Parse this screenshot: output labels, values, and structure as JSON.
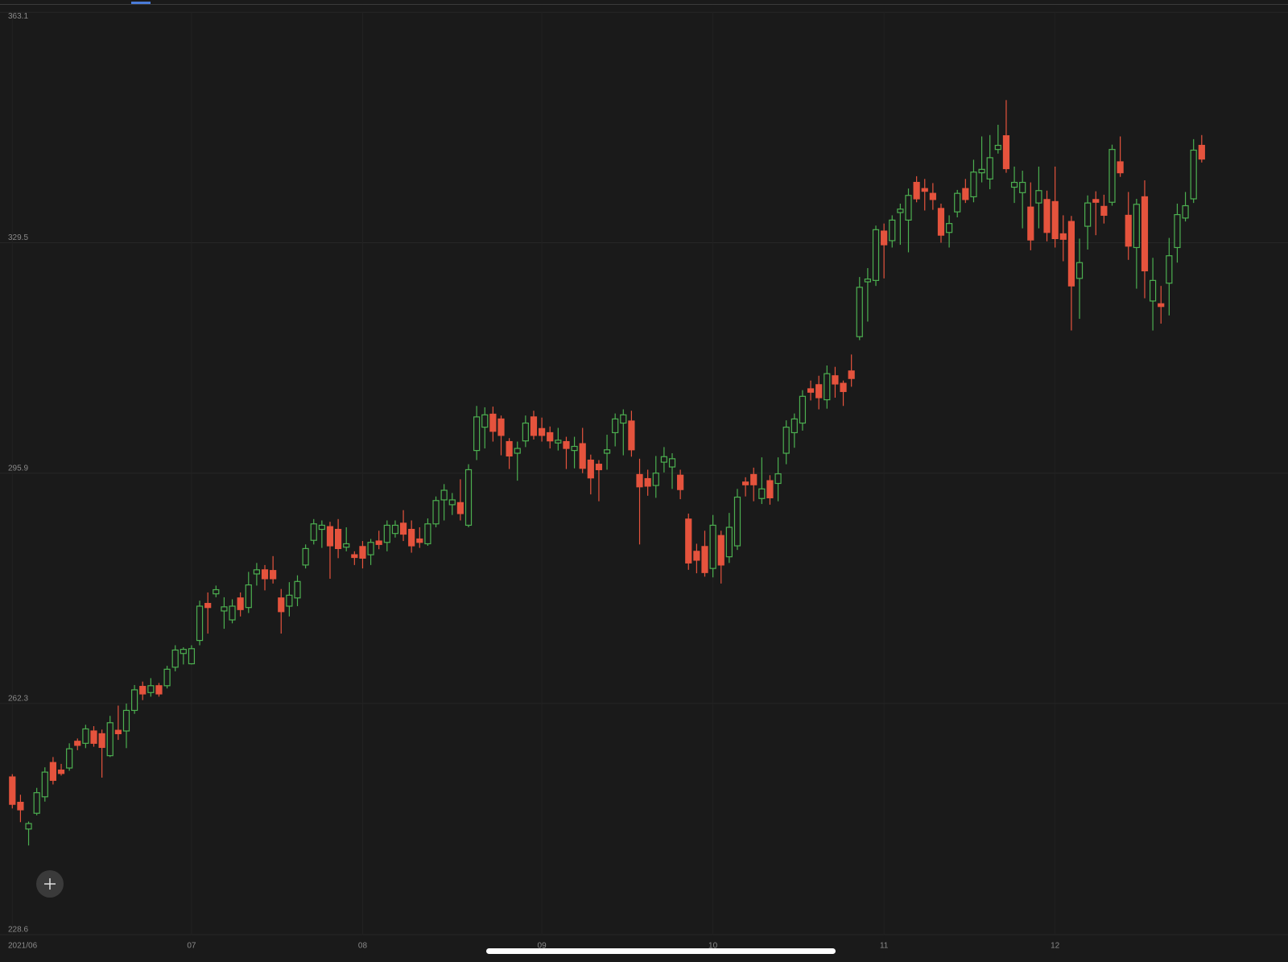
{
  "chart_data": {
    "type": "candlestick",
    "categories": [
      "2021/06",
      null,
      null,
      null,
      null,
      null,
      null,
      null,
      null,
      null,
      null,
      null,
      null,
      null,
      null,
      null,
      null,
      null,
      null,
      null,
      null,
      null,
      "07",
      null,
      null,
      null,
      null,
      null,
      null,
      null,
      null,
      null,
      null,
      null,
      null,
      null,
      null,
      null,
      null,
      null,
      null,
      null,
      null,
      "08",
      null,
      null,
      null,
      null,
      null,
      null,
      null,
      null,
      null,
      null,
      null,
      null,
      null,
      null,
      null,
      null,
      null,
      null,
      null,
      null,
      null,
      "09",
      null,
      null,
      null,
      null,
      null,
      null,
      null,
      null,
      null,
      null,
      null,
      null,
      null,
      null,
      null,
      null,
      null,
      null,
      null,
      null,
      "10",
      null,
      null,
      null,
      null,
      null,
      null,
      null,
      null,
      null,
      null,
      null,
      null,
      null,
      null,
      null,
      null,
      null,
      null,
      null,
      null,
      "11",
      null,
      null,
      null,
      null,
      null,
      null,
      null,
      null,
      null,
      null,
      null,
      null,
      null,
      null,
      null,
      null,
      null,
      null,
      null,
      null,
      "12",
      null,
      null,
      null,
      null,
      null,
      null,
      null,
      null,
      null,
      null,
      null,
      null,
      null,
      null,
      null,
      null,
      null,
      null
    ],
    "open": [
      251.6,
      247.9,
      244,
      246.3,
      248.7,
      253.7,
      252.6,
      252.9,
      256.8,
      256.5,
      258.3,
      257.9,
      254.7,
      258.4,
      258.3,
      261.3,
      264.8,
      263.9,
      264.9,
      264.9,
      267.6,
      269.6,
      268.1,
      271.5,
      276.9,
      278.3,
      275.8,
      274.5,
      277.7,
      276.3,
      281.2,
      281.8,
      281.7,
      277.7,
      276.5,
      277.7,
      282.5,
      286.1,
      287.7,
      288.1,
      287.7,
      285.1,
      284,
      285.2,
      284,
      286,
      285.8,
      287.1,
      288.6,
      287.7,
      286.3,
      285.6,
      288.5,
      292,
      291.3,
      291.6,
      288.3,
      299.2,
      302.6,
      304.5,
      303.8,
      300.5,
      298.8,
      300.6,
      304.1,
      302.4,
      301.8,
      300.3,
      300.5,
      299.2,
      300.2,
      297.8,
      297.2,
      298.8,
      301.8,
      303.2,
      303.5,
      295.7,
      295.1,
      294.1,
      297.5,
      296.8,
      295.6,
      289.2,
      284.5,
      285.2,
      282,
      286.8,
      283.7,
      285.3,
      294.6,
      295.7,
      292.2,
      294.8,
      294.4,
      298.8,
      301.8,
      303.2,
      308.2,
      308.8,
      306.6,
      310.1,
      309,
      310.8,
      315.8,
      323.8,
      324,
      331.2,
      329.8,
      333.9,
      332.8,
      338.3,
      337.4,
      336.7,
      334.5,
      331,
      334,
      337.4,
      336.2,
      339.7,
      338.8,
      343.1,
      345.1,
      337.6,
      336.8,
      334.7,
      335.3,
      335.8,
      335.5,
      330.8,
      332.6,
      324.3,
      331.9,
      335.8,
      334.8,
      335.4,
      341.3,
      333.5,
      328.8,
      336.2,
      321,
      320.6,
      323.6,
      328.8,
      333.1,
      335.9,
      343.7
    ],
    "high": [
      252,
      249,
      245.1,
      250,
      253,
      254.5,
      253.5,
      256.5,
      257.2,
      259.2,
      259,
      258.5,
      260.5,
      262,
      262.3,
      265,
      265.5,
      266,
      265.3,
      267.8,
      270.8,
      270.5,
      270.8,
      277.3,
      278.5,
      279.5,
      277.8,
      277.5,
      278.5,
      281.5,
      282.8,
      282.5,
      283.8,
      279,
      280,
      281,
      285.5,
      289.2,
      289,
      288.8,
      289.2,
      288,
      284.5,
      286,
      286.3,
      287.5,
      289,
      289,
      290.5,
      289,
      288,
      289.3,
      292.5,
      294.3,
      293,
      295,
      297.2,
      305.7,
      305.5,
      305.6,
      304.3,
      301,
      300.5,
      304.3,
      305,
      304,
      302.7,
      302.5,
      301.2,
      301.2,
      302.5,
      298.6,
      297.8,
      301.5,
      304.6,
      305.2,
      305,
      298,
      296.4,
      298.4,
      299.7,
      298.8,
      296.4,
      290,
      285.6,
      287.5,
      289.8,
      287.5,
      290.1,
      293.6,
      295.3,
      296.7,
      298.2,
      295.6,
      298.2,
      303.6,
      304.6,
      308,
      309.4,
      310.1,
      311.6,
      311.4,
      309.4,
      313.2,
      324.5,
      325.8,
      332,
      332.3,
      333.5,
      335.2,
      337.4,
      339.2,
      338.8,
      338.2,
      335.2,
      333.5,
      337.2,
      338.8,
      341.6,
      345,
      345.2,
      346.7,
      350.3,
      340.6,
      340,
      338.3,
      340.6,
      337.1,
      340.6,
      333.5,
      333.4,
      330.1,
      336.4,
      337,
      336.5,
      343.8,
      345,
      336.9,
      335.9,
      338.6,
      327.3,
      323.2,
      330.2,
      335.2,
      336.9,
      344.6,
      345.2
    ],
    "low": [
      247,
      245,
      241.6,
      246,
      248,
      250.5,
      251.8,
      252.5,
      255.5,
      255.8,
      256,
      251.5,
      254.5,
      257,
      255.8,
      260.8,
      262.8,
      263.3,
      263.3,
      264.5,
      267,
      268,
      268,
      270.8,
      272.5,
      277.8,
      273.2,
      274,
      275,
      275.5,
      279.5,
      278.8,
      279.8,
      272.5,
      275,
      276.5,
      282,
      285.5,
      285,
      280.5,
      283.5,
      284.5,
      282.5,
      282,
      282.5,
      284.8,
      284.5,
      286.5,
      286,
      284.3,
      285,
      285.3,
      288,
      289,
      289.8,
      289,
      288,
      297.8,
      299.5,
      300.5,
      298.5,
      296.5,
      294.8,
      299.7,
      300.8,
      300.5,
      299.5,
      299.2,
      296.5,
      296.6,
      295.9,
      292.8,
      291.8,
      296.4,
      299.8,
      298.5,
      298.3,
      285.5,
      292.6,
      292.3,
      296,
      293.6,
      292.1,
      281.8,
      281.3,
      280.8,
      280.7,
      279.8,
      282.8,
      284.7,
      292.5,
      291.8,
      291.4,
      291.3,
      291.8,
      297.2,
      299.6,
      302.1,
      306.5,
      305.2,
      305.3,
      306.9,
      305.7,
      308.5,
      315.3,
      318,
      323.2,
      324.3,
      328.8,
      329.2,
      328.1,
      335.4,
      334.2,
      334.3,
      329.5,
      328.8,
      333.2,
      335.3,
      335.4,
      338.3,
      337.3,
      342.5,
      339.7,
      335.3,
      331.6,
      328.4,
      331.6,
      329.7,
      328.8,
      326.8,
      316.7,
      318.4,
      328.5,
      330.6,
      332.3,
      334.9,
      339.1,
      327,
      322.8,
      321.4,
      316.7,
      317.7,
      318.9,
      326.6,
      332.6,
      335.3,
      341.2
    ],
    "close": [
      247.6,
      246.8,
      244.8,
      249.3,
      252.3,
      251.1,
      252.1,
      255.7,
      256.2,
      258.6,
      256.5,
      255.9,
      259.5,
      257.9,
      261.3,
      264.3,
      263.7,
      264.9,
      263.7,
      267.3,
      270.1,
      270.2,
      270.3,
      276.5,
      276.3,
      278.9,
      276.4,
      276.5,
      276,
      279.6,
      281.8,
      280.5,
      280.5,
      275.7,
      278.1,
      280.1,
      284.9,
      288.5,
      288.3,
      285.3,
      284.9,
      285.6,
      283.6,
      283.5,
      285.8,
      285.5,
      288.3,
      288.3,
      287,
      285.3,
      285.8,
      288.5,
      291.9,
      293.4,
      292,
      290,
      296.4,
      304.1,
      304.4,
      302,
      301.4,
      298.4,
      299.5,
      303.2,
      301.4,
      301.4,
      300.6,
      300.7,
      299.5,
      299.8,
      296.6,
      295.2,
      296.4,
      299.3,
      303.8,
      304.4,
      299.3,
      293.9,
      294,
      295.9,
      298.3,
      298,
      293.5,
      282.8,
      283.2,
      281.4,
      288.3,
      282.5,
      288,
      292.4,
      294.2,
      294.2,
      293.6,
      292.3,
      295.8,
      302.6,
      303.8,
      307.1,
      307.7,
      306.9,
      310.4,
      308.9,
      307.8,
      309.7,
      323,
      324.2,
      331.4,
      329.2,
      332.8,
      334.4,
      336.4,
      335.9,
      337,
      335.8,
      330.6,
      332.3,
      336.7,
      335.8,
      339.8,
      340.2,
      341.9,
      343.7,
      340.3,
      338.3,
      338.3,
      329.9,
      337.1,
      331,
      330.1,
      330,
      323.2,
      326.6,
      335.3,
      335.4,
      333.5,
      343.1,
      339.7,
      329,
      335.1,
      325.4,
      324,
      320.2,
      327.6,
      333.6,
      334.9,
      343,
      341.7
    ],
    "up_color": "#4caf50",
    "down_color": "#e5533d",
    "ylim": [
      228.6,
      363.1
    ],
    "yticks": [
      228.6,
      262.3,
      295.9,
      329.5,
      363.1
    ],
    "grid": true
  }
}
